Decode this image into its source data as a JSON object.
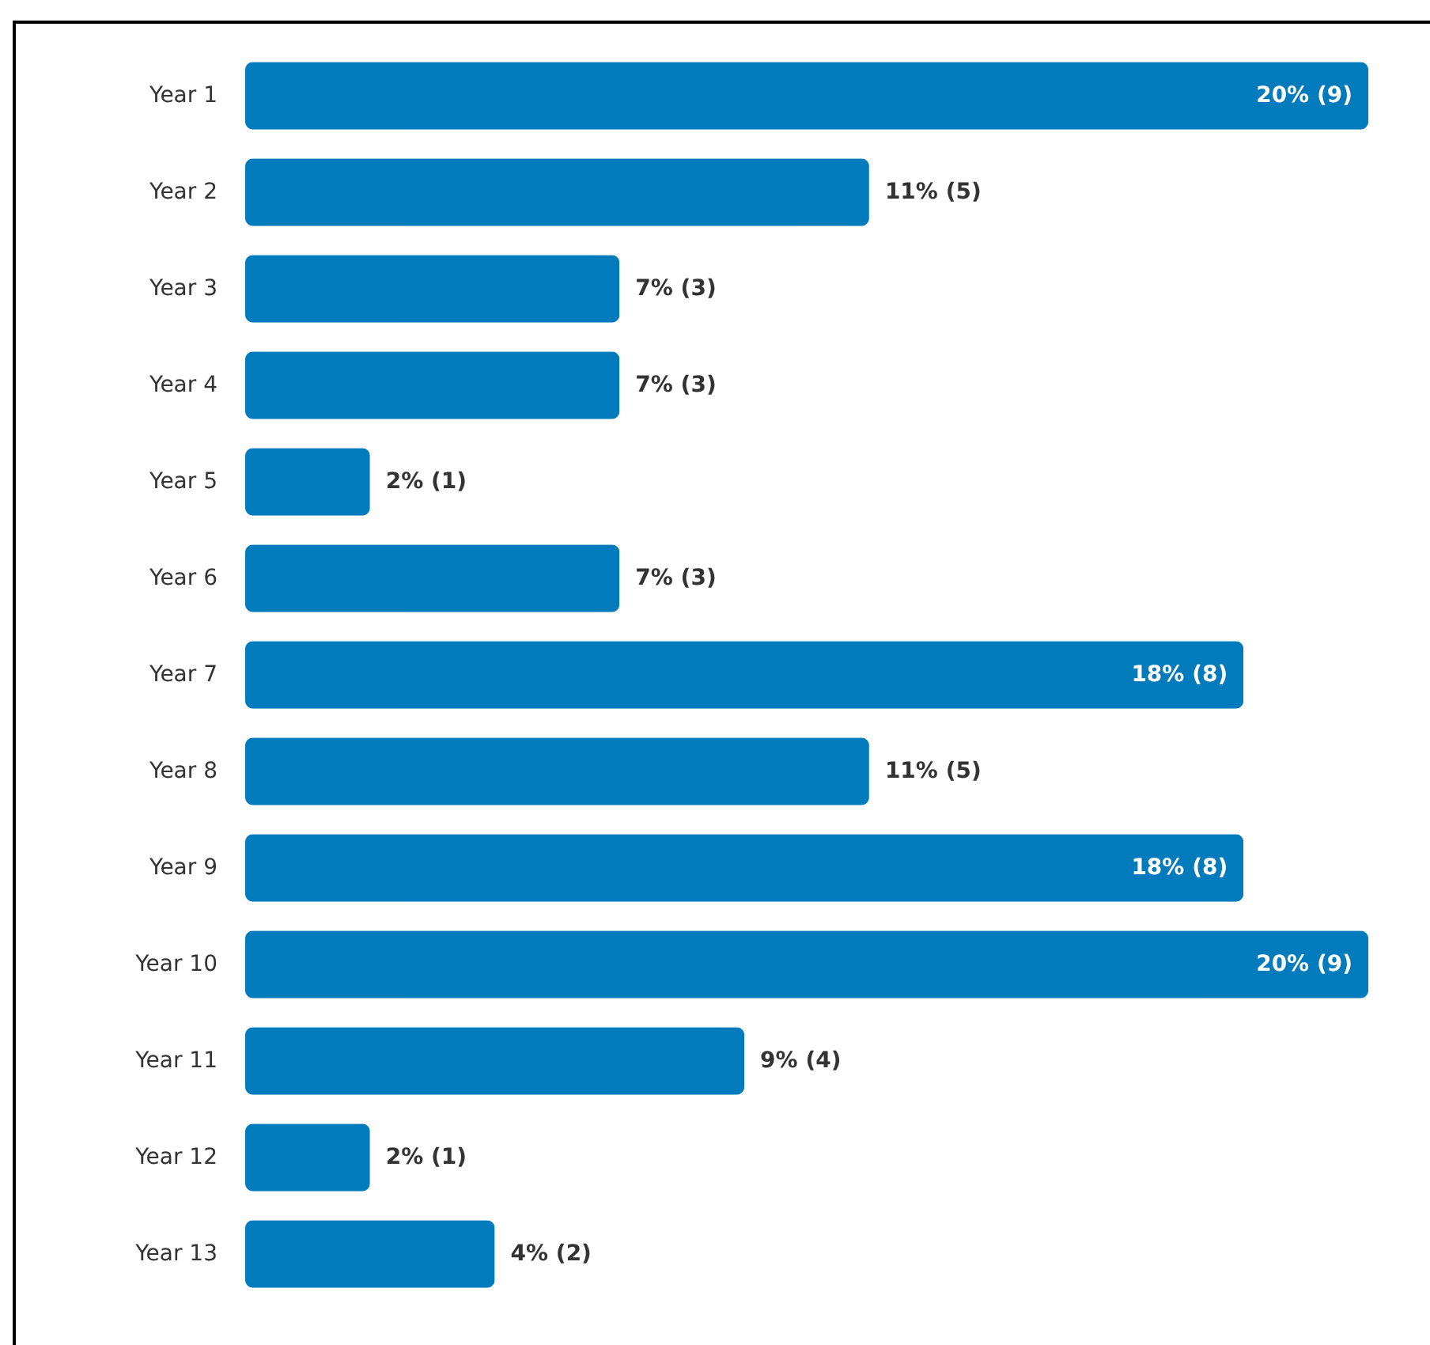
{
  "chart_data": {
    "type": "bar",
    "orientation": "horizontal",
    "categories": [
      "Year 1",
      "Year 2",
      "Year 3",
      "Year 4",
      "Year 5",
      "Year 6",
      "Year 7",
      "Year 8",
      "Year 9",
      "Year 10",
      "Year 11",
      "Year 12",
      "Year 13"
    ],
    "values": [
      9,
      5,
      3,
      3,
      1,
      3,
      8,
      5,
      8,
      9,
      4,
      1,
      2
    ],
    "value_labels": [
      "20% (9)",
      "11% (5)",
      "7% (3)",
      "7% (3)",
      "2% (1)",
      "7% (3)",
      "18% (8)",
      "11% (5)",
      "18% (8)",
      "20% (9)",
      "9% (4)",
      "2% (1)",
      "4% (2)"
    ],
    "color": "#027bbd"
  }
}
